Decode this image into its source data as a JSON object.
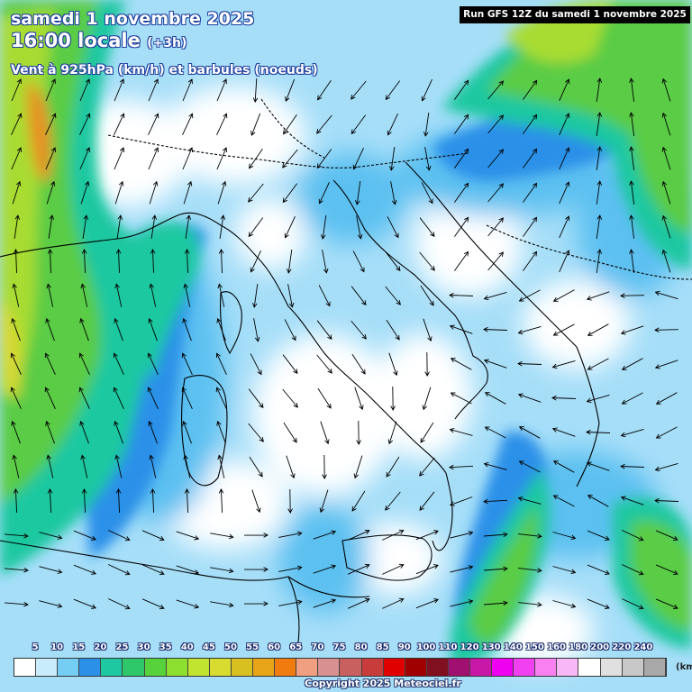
{
  "header": {
    "date": "samedi 1 novembre 2025",
    "time": "16:00 locale",
    "offset": "(+3h)",
    "description": "Vent à 925hPa (km/h) et barbules (noeuds)"
  },
  "run_label": "Run GFS 12Z du samedi 1 novembre 2025",
  "legend": {
    "unit": "(km",
    "ticks": [
      "5",
      "10",
      "15",
      "20",
      "25",
      "30",
      "35",
      "40",
      "45",
      "50",
      "55",
      "60",
      "65",
      "70",
      "75",
      "80",
      "85",
      "90",
      "100",
      "110",
      "120",
      "130",
      "140",
      "150",
      "160",
      "180",
      "200",
      "220",
      "240"
    ],
    "colors": [
      "#ffffff",
      "#c8ecfb",
      "#74cdf3",
      "#2a90e8",
      "#1ec8a0",
      "#2ec86a",
      "#58d23c",
      "#8ee030",
      "#c0e430",
      "#d8dc30",
      "#d8c020",
      "#e8a418",
      "#f07c10",
      "#f0a080",
      "#d89090",
      "#c86060",
      "#c83c3c",
      "#e00000",
      "#a00000",
      "#801020",
      "#a01070",
      "#c818a8",
      "#f000f0",
      "#f040f0",
      "#f880f0",
      "#f8b8f8",
      "#ffffff",
      "#e0e0e0",
      "#c8c8c8",
      "#a8a8a8"
    ]
  },
  "colors": {
    "calm": "#ffffff",
    "light_blue": "#a6def8",
    "mid_blue": "#5cc0f0",
    "blue": "#2a90e8",
    "teal": "#1ec8a0",
    "green": "#5acc44",
    "lime": "#a8dc30",
    "yellow": "#d8d830",
    "orange": "#e89020",
    "coastline": "#000000",
    "arrow": "#000000"
  },
  "copyright": "Copyright 2025 Meteociel.fr"
}
